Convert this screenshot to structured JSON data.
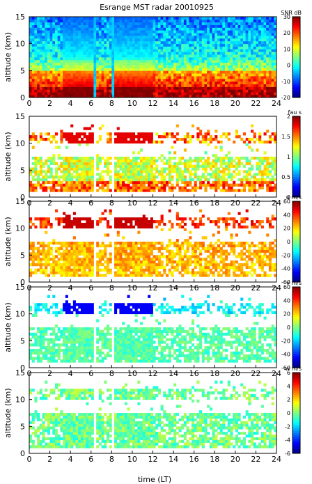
{
  "title": "Esrange MST radar 20010925",
  "xlabel": "time (LT)",
  "chart_data": [
    {
      "type": "heatmap",
      "panel": "snr",
      "ylabel": "altitude (km)",
      "ylim": [
        0,
        15
      ],
      "yticks": [
        "0",
        "5",
        "10",
        "15"
      ],
      "xlim": [
        0,
        24
      ],
      "xticks": [
        "0",
        "2",
        "4",
        "6",
        "8",
        "10",
        "12",
        "14",
        "16",
        "18",
        "20",
        "22",
        "24"
      ],
      "colorbar": {
        "label": "SNR dB",
        "range": [
          -20,
          30
        ],
        "ticks": [
          "30",
          "20",
          "10",
          "0",
          "-10",
          "-20"
        ]
      },
      "data_gaps_hours": [
        [
          6.2,
          6.5
        ],
        [
          7.9,
          8.2
        ]
      ],
      "profile_snr_db": [
        {
          "altitude_km": 1,
          "value": 28
        },
        {
          "altitude_km": 3,
          "value": 25
        },
        {
          "altitude_km": 5,
          "value": 14
        },
        {
          "altitude_km": 7,
          "value": 4
        },
        {
          "altitude_km": 9,
          "value": -2
        },
        {
          "altitude_km": 11,
          "value": -6
        },
        {
          "altitude_km": 13,
          "value": -12
        },
        {
          "altitude_km": 15,
          "value": -15
        }
      ]
    },
    {
      "type": "heatmap",
      "panel": "fading",
      "ylabel": "altitude (km)",
      "ylim": [
        0,
        15
      ],
      "yticks": [
        "0",
        "5",
        "10",
        "15"
      ],
      "xlim": [
        0,
        24
      ],
      "xticks": [
        "0",
        "2",
        "4",
        "6",
        "8",
        "10",
        "12",
        "14",
        "16",
        "18",
        "20",
        "22",
        "24"
      ],
      "colorbar": {
        "label": "fau s",
        "range": [
          0,
          2
        ],
        "ticks": [
          "2",
          "1.5",
          "1",
          "0.5",
          "0"
        ]
      },
      "data_gaps_hours": [
        [
          6.2,
          6.5
        ],
        [
          7.9,
          8.2
        ]
      ]
    },
    {
      "type": "heatmap",
      "panel": "u_wind",
      "ylabel": "altitude (km)",
      "ylim": [
        0,
        15
      ],
      "yticks": [
        "0",
        "5",
        "10",
        "15"
      ],
      "xlim": [
        0,
        24
      ],
      "xticks": [
        "0",
        "2",
        "4",
        "6",
        "8",
        "10",
        "12",
        "14",
        "16",
        "18",
        "20",
        "22",
        "24"
      ],
      "colorbar": {
        "label": "u m/s",
        "range": [
          -60,
          60
        ],
        "ticks": [
          "60",
          "40",
          "20",
          "0",
          "-20",
          "-40",
          "-60"
        ]
      },
      "data_gaps_hours": [
        [
          6.2,
          6.5
        ],
        [
          7.9,
          8.2
        ]
      ]
    },
    {
      "type": "heatmap",
      "panel": "v_wind",
      "ylabel": "altitude (km)",
      "ylim": [
        0,
        15
      ],
      "yticks": [
        "0",
        "5",
        "10",
        "15"
      ],
      "xlim": [
        0,
        24
      ],
      "xticks": [
        "0",
        "2",
        "4",
        "6",
        "8",
        "10",
        "12",
        "14",
        "16",
        "18",
        "20",
        "22",
        "24"
      ],
      "colorbar": {
        "label": "v m/s",
        "range": [
          -60,
          60
        ],
        "ticks": [
          "60",
          "40",
          "20",
          "0",
          "-20",
          "-40",
          "-60"
        ]
      },
      "data_gaps_hours": [
        [
          6.2,
          6.5
        ],
        [
          7.9,
          8.2
        ]
      ]
    },
    {
      "type": "heatmap",
      "panel": "w_wind",
      "ylabel": "altitude (km)",
      "ylim": [
        0,
        15
      ],
      "yticks": [
        "0",
        "5",
        "10",
        "15"
      ],
      "xlim": [
        0,
        24
      ],
      "xticks": [
        "0",
        "2",
        "4",
        "6",
        "8",
        "10",
        "12",
        "14",
        "16",
        "18",
        "20",
        "22",
        "24"
      ],
      "colorbar": {
        "label": "w m/s",
        "range": [
          -6,
          6
        ],
        "ticks": [
          "6",
          "4",
          "2",
          "0",
          "-2",
          "-4",
          "-6"
        ]
      },
      "data_gaps_hours": [
        [
          6.2,
          6.5
        ],
        [
          7.9,
          8.2
        ]
      ]
    }
  ]
}
